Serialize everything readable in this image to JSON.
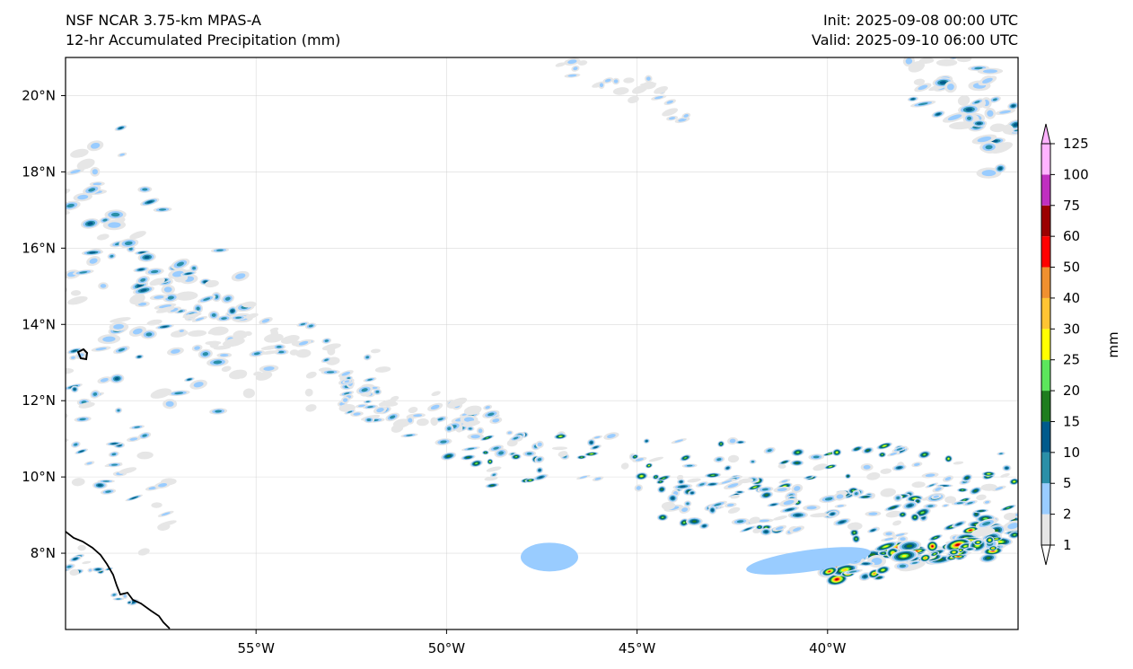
{
  "title": {
    "model": "NSF NCAR 3.75-km MPAS-A",
    "field": "12-hr Accumulated Precipitation (mm)",
    "init": "Init: 2025-09-08 00:00 UTC",
    "valid": "Valid: 2025-09-10 06:00 UTC"
  },
  "map": {
    "lon_range": [
      -60,
      -35
    ],
    "lat_range": [
      6,
      21
    ],
    "lon_ticks": [
      {
        "value": -55,
        "label": "55°W"
      },
      {
        "value": -50,
        "label": "50°W"
      },
      {
        "value": -45,
        "label": "45°W"
      },
      {
        "value": -40,
        "label": "40°W"
      }
    ],
    "lat_ticks": [
      {
        "value": 8,
        "label": "8°N"
      },
      {
        "value": 10,
        "label": "10°N"
      },
      {
        "value": 12,
        "label": "12°N"
      },
      {
        "value": 14,
        "label": "14°N"
      },
      {
        "value": 16,
        "label": "16°N"
      },
      {
        "value": 18,
        "label": "18°N"
      },
      {
        "value": 20,
        "label": "20°N"
      }
    ],
    "gridlines": true
  },
  "colorbar": {
    "unit_label": "mm",
    "levels": [
      "1",
      "2",
      "5",
      "10",
      "15",
      "20",
      "25",
      "30",
      "40",
      "50",
      "60",
      "75",
      "100",
      "125"
    ],
    "colors": [
      "#e6e6e6",
      "#99ccff",
      "#2a8fa8",
      "#005a8c",
      "#1e7d1e",
      "#5ce65c",
      "#ffff00",
      "#ffc433",
      "#f09030",
      "#ff0000",
      "#9b0000",
      "#c030c0",
      "#ffb3ff"
    ]
  }
}
